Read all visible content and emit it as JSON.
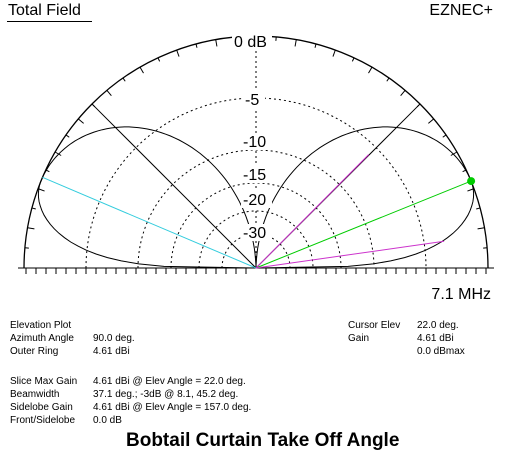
{
  "header": {
    "title": "Total Field",
    "brand": "EZNEC+"
  },
  "frequency": "7.1 MHz",
  "plot": {
    "ring_labels": [
      "0 dB",
      "-5",
      "-10",
      "-15",
      "-20",
      "-30"
    ],
    "colors": {
      "pattern": "#000000",
      "cursor": "#00cc00",
      "cyan": "#33ccdd",
      "magenta": "#cc33cc",
      "grid": "#000000"
    }
  },
  "info_left": {
    "plot_type": "Elevation Plot",
    "rows": [
      {
        "label": "Azimuth Angle",
        "value": "90.0 deg."
      },
      {
        "label": "Outer Ring",
        "value": "4.61 dBi"
      }
    ]
  },
  "info_right": {
    "rows": [
      {
        "label": "Cursor Elev",
        "value": "22.0 deg."
      },
      {
        "label": "Gain",
        "value": "4.61 dBi"
      },
      {
        "label": "",
        "value": "0.0 dBmax"
      }
    ]
  },
  "slice": {
    "rows": [
      {
        "label": "Slice Max Gain",
        "value": "4.61 dBi @ Elev Angle = 22.0 deg."
      },
      {
        "label": "Beamwidth",
        "value": "37.1 deg.; -3dB @ 8.1, 45.2 deg."
      },
      {
        "label": "Sidelobe Gain",
        "value": "4.61 dBi @ Elev Angle = 157.0 deg."
      },
      {
        "label": "Front/Sidelobe",
        "value": "0.0 dB"
      }
    ]
  },
  "caption": "Bobtail Curtain Take Off Angle"
}
